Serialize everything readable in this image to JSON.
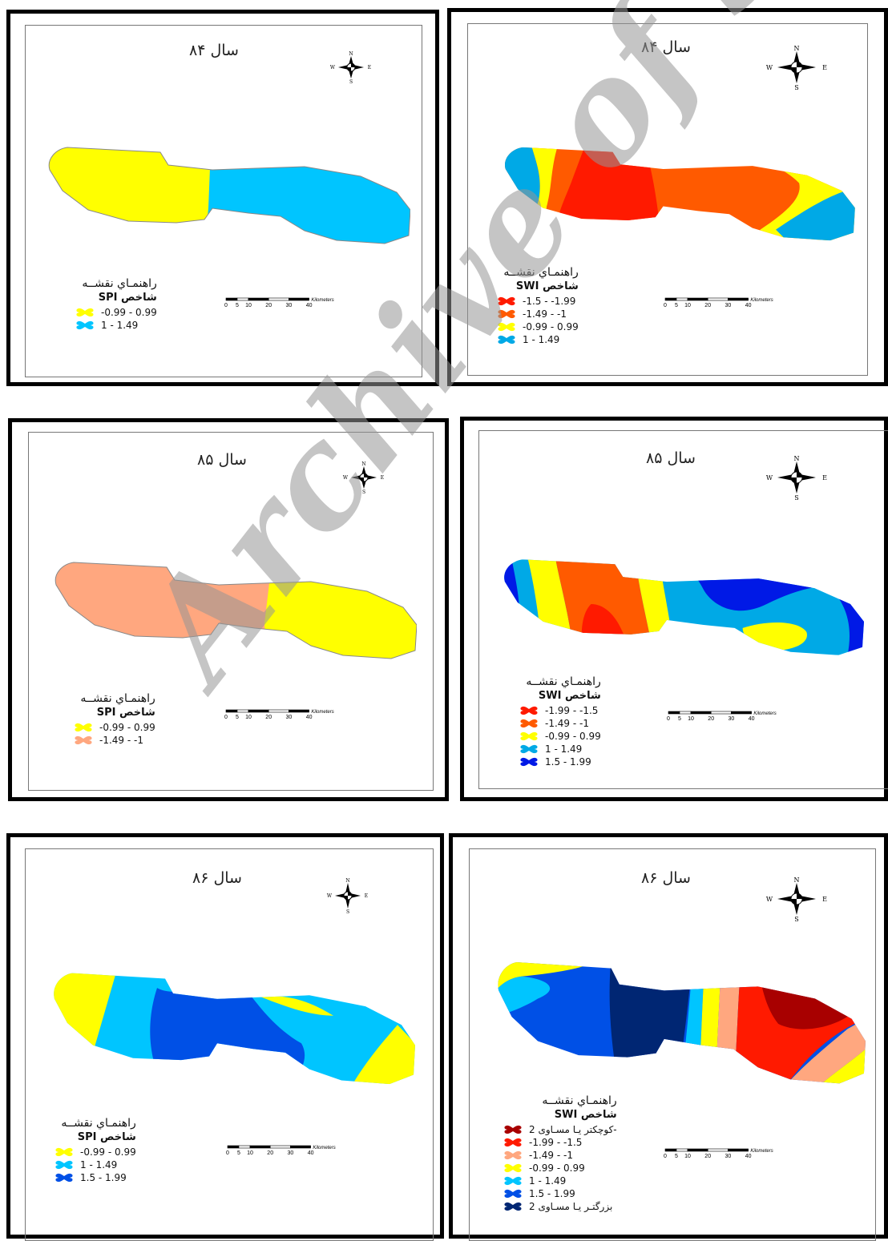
{
  "panels": [
    {
      "title": "سال ۸۴",
      "legend_title": "راهنمـاي نقشــه",
      "index": "شاخص SPI",
      "legend": [
        {
          "label": "-0.99 - 0.99",
          "color": "#FFFF00"
        },
        {
          "label": "1 - 1.49",
          "color": "#00C5FF"
        }
      ]
    },
    {
      "title": "سال ۸۴",
      "legend_title": "راهنمـاي نقشــه",
      "index": "شاخص SWI",
      "legend": [
        {
          "label": "-1.5 - -1.99",
          "color": "#FF1A00"
        },
        {
          "label": "-1.49 - -1",
          "color": "#FF5A00"
        },
        {
          "label": "-0.99 - 0.99",
          "color": "#FFFF00"
        },
        {
          "label": "1 - 1.49",
          "color": "#00A9E6"
        }
      ]
    },
    {
      "title": "سال ۸۵",
      "legend_title": "راهنمـاي نقشــه",
      "index": "شاخص SPI",
      "legend": [
        {
          "label": "-0.99 - 0.99",
          "color": "#FFFF00"
        },
        {
          "label": "-1.49 - -1",
          "color": "#FFA77F"
        }
      ]
    },
    {
      "title": "سال ۸۵",
      "legend_title": "راهنمـاي نقشــه",
      "index": "شاخص SWI",
      "legend": [
        {
          "label": "-1.99 - -1.5",
          "color": "#FF1A00"
        },
        {
          "label": "-1.49 - -1",
          "color": "#FF5A00"
        },
        {
          "label": "-0.99 - 0.99",
          "color": "#FFFF00"
        },
        {
          "label": "1 - 1.49",
          "color": "#00A9E6"
        },
        {
          "label": "1.5 - 1.99",
          "color": "#0019E6"
        }
      ]
    },
    {
      "title": "سال ۸۶",
      "legend_title": "راهنمـاي نقشــه",
      "index": "شاخص SPI",
      "legend": [
        {
          "label": "-0.99 - 0.99",
          "color": "#FFFF00"
        },
        {
          "label": "1 - 1.49",
          "color": "#00C5FF"
        },
        {
          "label": "1.5 - 1.99",
          "color": "#0050E6"
        }
      ]
    },
    {
      "title": "سال ۸۶",
      "legend_title": "راهنمـاي نقشــه",
      "index": "شاخص SWI",
      "legend": [
        {
          "label": "کوچکتر یـا مسـاوی 2-",
          "color": "#A80000"
        },
        {
          "label": "-1.99 - -1.5",
          "color": "#FF1A00"
        },
        {
          "label": "-1.49 - -1",
          "color": "#FFA77F"
        },
        {
          "label": "-0.99 - 0.99",
          "color": "#FFFF00"
        },
        {
          "label": "1 - 1.49",
          "color": "#00C5FF"
        },
        {
          "label": "1.5 - 1.99",
          "color": "#0050E6"
        },
        {
          "label": "بزرگتـر یـا مسـاوی 2",
          "color": "#002673"
        }
      ]
    }
  ],
  "compass": {
    "n": "N",
    "s": "S",
    "e": "E",
    "w": "W"
  },
  "scale": {
    "ticks": [
      "0",
      "5",
      "10",
      "20",
      "30",
      "40"
    ],
    "unit": "Kilometers"
  },
  "watermark": "Archive of SID"
}
